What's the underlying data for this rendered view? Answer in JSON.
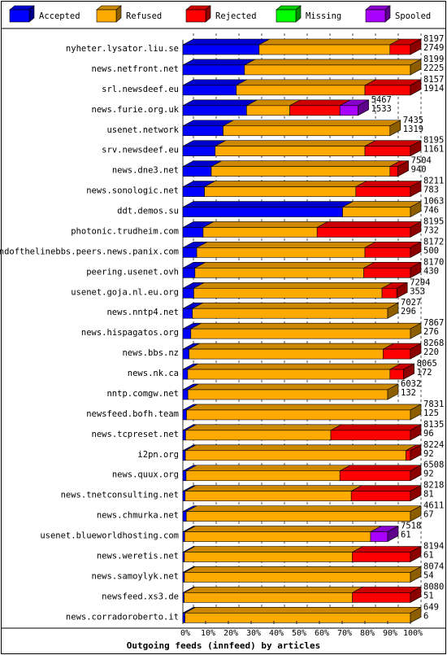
{
  "chart_data": {
    "type": "bar",
    "orientation": "horizontal",
    "stacked": true,
    "title": "Outgoing feeds (innfeed) by articles",
    "xlabel": "",
    "ylabel": "",
    "xlim": [
      0,
      100
    ],
    "x_ticks": [
      "0%",
      "10%",
      "20%",
      "30%",
      "40%",
      "50%",
      "60%",
      "70%",
      "80%",
      "90%",
      "100%"
    ],
    "grid": true,
    "legend_position": "top",
    "legend": [
      {
        "name": "Accepted",
        "color": "#0000ff"
      },
      {
        "name": "Refused",
        "color": "#ffaa00"
      },
      {
        "name": "Rejected",
        "color": "#ff0000"
      },
      {
        "name": "Missing",
        "color": "#00ff00"
      },
      {
        "name": "Spooled",
        "color": "#aa00ff"
      }
    ],
    "rows": [
      {
        "label": "nyheter.lysator.liu.se",
        "offered": "8197",
        "accepted": "2749",
        "values": [
          33.5,
          57.5,
          9.0,
          0,
          0
        ]
      },
      {
        "label": "news.netfront.net",
        "offered": "8199",
        "accepted": "2225",
        "values": [
          27.1,
          72.9,
          0,
          0,
          0
        ]
      },
      {
        "label": "srl.newsdeef.eu",
        "offered": "8157",
        "accepted": "1914",
        "values": [
          23.5,
          56.5,
          20.0,
          0,
          0
        ]
      },
      {
        "label": "news.furie.org.uk",
        "offered": "5467",
        "accepted": "1533",
        "values": [
          28.0,
          19.0,
          22.0,
          0,
          8.0
        ]
      },
      {
        "label": "usenet.network",
        "offered": "7435",
        "accepted": "1319",
        "values": [
          17.7,
          73.3,
          0,
          0,
          0
        ]
      },
      {
        "label": "srv.newsdeef.eu",
        "offered": "8195",
        "accepted": "1161",
        "values": [
          14.2,
          65.8,
          20.0,
          0,
          0
        ]
      },
      {
        "label": "news.dne3.net",
        "offered": "7504",
        "accepted": "940",
        "values": [
          12.5,
          78.5,
          3.5,
          0,
          0
        ]
      },
      {
        "label": "news.sonologic.net",
        "offered": "8211",
        "accepted": "783",
        "values": [
          9.5,
          66.5,
          24.0,
          0,
          0
        ]
      },
      {
        "label": "ddt.demos.su",
        "offered": "1063",
        "accepted": "746",
        "values": [
          70.2,
          29.8,
          0,
          0,
          0
        ]
      },
      {
        "label": "photonic.trudheim.com",
        "offered": "8195",
        "accepted": "732",
        "values": [
          8.9,
          50.1,
          41.0,
          0,
          0
        ]
      },
      {
        "label": "endofthelinebbs.peers.news.panix.com",
        "offered": "8172",
        "accepted": "500",
        "values": [
          6.1,
          73.9,
          20.0,
          0,
          0
        ]
      },
      {
        "label": "peering.usenet.ovh",
        "offered": "8170",
        "accepted": "430",
        "values": [
          5.3,
          74.2,
          20.5,
          0,
          0
        ]
      },
      {
        "label": "usenet.goja.nl.eu.org",
        "offered": "7294",
        "accepted": "353",
        "values": [
          4.8,
          82.7,
          6.5,
          0,
          0
        ]
      },
      {
        "label": "news.nntp4.net",
        "offered": "7027",
        "accepted": "296",
        "values": [
          4.2,
          85.8,
          0,
          0,
          0
        ]
      },
      {
        "label": "news.hispagatos.org",
        "offered": "7867",
        "accepted": "276",
        "values": [
          3.5,
          96.5,
          0,
          0,
          0
        ]
      },
      {
        "label": "news.bbs.nz",
        "offered": "8268",
        "accepted": "220",
        "values": [
          2.7,
          85.3,
          12.0,
          0,
          0
        ]
      },
      {
        "label": "news.nk.ca",
        "offered": "8065",
        "accepted": "172",
        "values": [
          2.1,
          88.9,
          6.0,
          0,
          0
        ]
      },
      {
        "label": "nntp.comgw.net",
        "offered": "6032",
        "accepted": "132",
        "values": [
          2.2,
          87.8,
          0,
          0,
          0
        ]
      },
      {
        "label": "newsfeed.bofh.team",
        "offered": "7831",
        "accepted": "125",
        "values": [
          1.6,
          98.4,
          0,
          0,
          0
        ]
      },
      {
        "label": "news.tcpreset.net",
        "offered": "8135",
        "accepted": "96",
        "values": [
          1.2,
          63.8,
          35.0,
          0,
          0
        ]
      },
      {
        "label": "i2pn.org",
        "offered": "8224",
        "accepted": "92",
        "values": [
          1.1,
          96.9,
          2.0,
          0,
          0
        ]
      },
      {
        "label": "news.quux.org",
        "offered": "6508",
        "accepted": "92",
        "values": [
          1.4,
          67.6,
          31.0,
          0,
          0
        ]
      },
      {
        "label": "news.tnetconsulting.net",
        "offered": "8218",
        "accepted": "81",
        "values": [
          1.0,
          73.0,
          26.0,
          0,
          0
        ]
      },
      {
        "label": "news.chmurka.net",
        "offered": "4611",
        "accepted": "67",
        "values": [
          1.5,
          98.5,
          0,
          0,
          0
        ]
      },
      {
        "label": "usenet.blueworldhosting.com",
        "offered": "7518",
        "accepted": "61",
        "values": [
          0.8,
          81.7,
          0,
          0,
          7.5
        ]
      },
      {
        "label": "news.weretis.net",
        "offered": "8194",
        "accepted": "61",
        "values": [
          0.7,
          73.8,
          25.5,
          0,
          0
        ]
      },
      {
        "label": "news.samoylyk.net",
        "offered": "8074",
        "accepted": "54",
        "values": [
          0.7,
          99.3,
          0,
          0,
          0
        ]
      },
      {
        "label": "newsfeed.xs3.de",
        "offered": "8080",
        "accepted": "51",
        "values": [
          0.6,
          73.9,
          25.5,
          0,
          0
        ]
      },
      {
        "label": "news.corradoroberto.it",
        "offered": "649",
        "accepted": "6",
        "values": [
          0.9,
          99.1,
          0,
          0,
          0
        ]
      }
    ]
  }
}
